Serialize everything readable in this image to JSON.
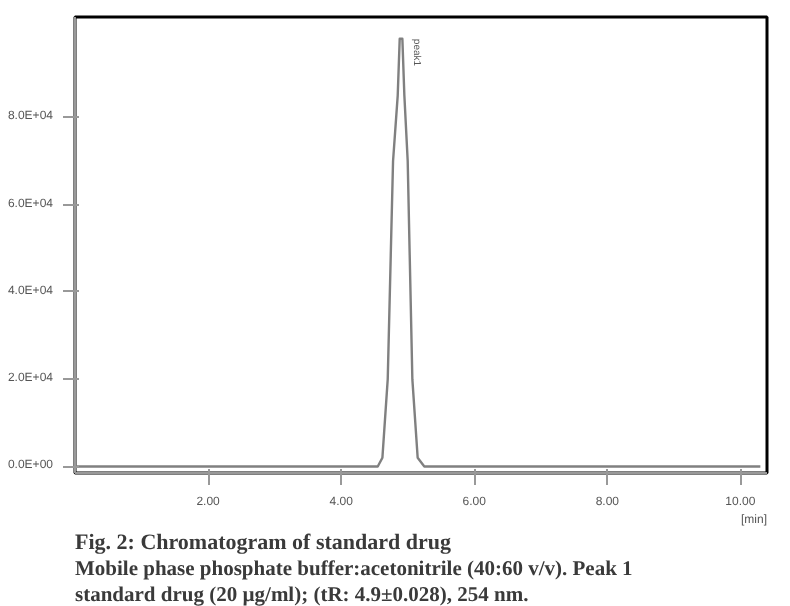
{
  "chart_data": {
    "type": "line",
    "title": "Fig. 2: Chromatogram of standard drug",
    "xlabel": "[min]",
    "x": [
      0,
      4.55,
      4.62,
      4.7,
      4.78,
      4.85,
      4.88,
      4.92,
      4.95,
      5.0,
      5.07,
      5.15,
      5.25,
      10.3
    ],
    "series": [
      {
        "color": "#808080",
        "values": [
          0,
          0,
          2000,
          20000,
          70000,
          85000,
          98000,
          98000,
          85000,
          70000,
          20000,
          2000,
          0,
          0
        ]
      }
    ],
    "xlim": [
      0,
      10.4
    ],
    "ylim": [
      -1500,
      103000
    ],
    "xticks": [
      {
        "value": 2,
        "label": "2.00"
      },
      {
        "value": 4,
        "label": "4.00"
      },
      {
        "value": 6,
        "label": "6.00"
      },
      {
        "value": 8,
        "label": "8.00"
      },
      {
        "value": 10,
        "label": "10.00"
      }
    ],
    "yticks": [
      {
        "value": 0,
        "label": "0.0E+00"
      },
      {
        "value": 20000,
        "label": "2.0E+04"
      },
      {
        "value": 40000,
        "label": "4.0E+04"
      },
      {
        "value": 60000,
        "label": "6.0E+04"
      },
      {
        "value": 80000,
        "label": "8.0E+04"
      }
    ],
    "annotations": [
      {
        "text": "peak1",
        "x": 4.95,
        "y": 98000
      },
      "Mobile phase phosphate buffer:acetonitrile (40:60 v/v). Peak 1",
      "standard drug (20 µg/ml); (tR: 4.9±0.028), 254 nm."
    ],
    "grid": false,
    "marker": "none",
    "line_style": "solid"
  }
}
